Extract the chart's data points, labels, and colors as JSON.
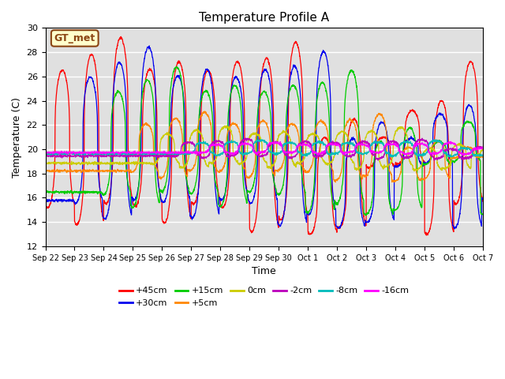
{
  "title": "Temperature Profile A",
  "xlabel": "Time",
  "ylabel": "Temperature (C)",
  "ylim": [
    12,
    30
  ],
  "yticks": [
    12,
    14,
    16,
    18,
    20,
    22,
    24,
    26,
    28,
    30
  ],
  "background_color": "#e0e0e0",
  "series": [
    {
      "label": "+45cm",
      "color": "#ff0000",
      "amp": 1.0,
      "lag": 0.0,
      "base": 19.5
    },
    {
      "label": "+30cm",
      "color": "#0000ee",
      "amp": 0.92,
      "lag": 0.04,
      "base": 19.5
    },
    {
      "label": "+15cm",
      "color": "#00cc00",
      "amp": 0.75,
      "lag": 0.08,
      "base": 19.5
    },
    {
      "label": "+5cm",
      "color": "#ff8800",
      "amp": 0.35,
      "lag": 0.12,
      "base": 19.7
    },
    {
      "label": "0cm",
      "color": "#cccc00",
      "amp": 0.22,
      "lag": 0.15,
      "base": 19.8
    },
    {
      "label": "-2cm",
      "color": "#bb00bb",
      "amp": 0.1,
      "lag": 0.18,
      "base": 19.9
    },
    {
      "label": "-8cm",
      "color": "#00bbbb",
      "amp": 0.08,
      "lag": 0.2,
      "base": 20.0
    },
    {
      "label": "-16cm",
      "color": "#ff00ff",
      "amp": 0.06,
      "lag": 0.22,
      "base": 20.0
    }
  ],
  "xtick_labels": [
    "Sep 22",
    "Sep 23",
    "Sep 24",
    "Sep 25",
    "Sep 26",
    "Sep 27",
    "Sep 28",
    "Sep 29",
    "Sep 30",
    "Oct 1",
    "Oct 2",
    "Oct 3",
    "Oct 4",
    "Oct 5",
    "Oct 6",
    "Oct 7"
  ],
  "gt_met_label": "GT_met",
  "day_peaks": [
    26.5,
    27.8,
    29.2,
    26.6,
    27.2,
    26.5,
    27.2,
    27.5,
    28.8,
    21.0,
    22.5,
    21.0,
    23.2,
    24.0,
    27.2,
    27.0
  ],
  "day_troughs": [
    15.2,
    13.8,
    15.5,
    15.3,
    13.9,
    15.5,
    15.2,
    13.2,
    14.2,
    13.0,
    13.5,
    18.5,
    18.8,
    13.0,
    15.5,
    15.5
  ]
}
